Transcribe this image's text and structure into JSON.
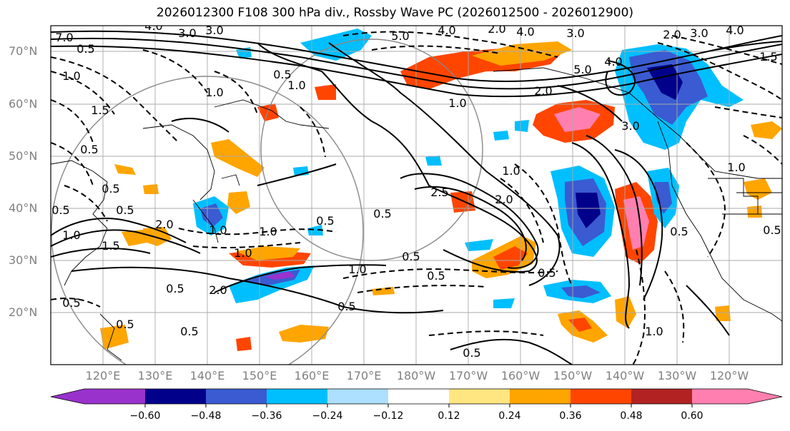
{
  "title": "2026012300 F108 300 hPa div., Rossby Wave PC (2026012500 - 2026012900)",
  "lat_labels": [
    "70°N",
    "60°N",
    "50°N",
    "40°N",
    "30°N",
    "20°N"
  ],
  "lon_labels": [
    "120°E",
    "130°E",
    "140°E",
    "150°E",
    "160°E",
    "170°E",
    "180°W",
    "170°W",
    "160°W",
    "150°W",
    "140°W",
    "130°W",
    "120°W"
  ],
  "colorbar": {
    "ticks": [
      "−0.60",
      "−0.48",
      "−0.36",
      "−0.24",
      "−0.12",
      "0.12",
      "0.24",
      "0.36",
      "0.48",
      "0.60"
    ],
    "colors": [
      "#9932CC",
      "#00008B",
      "#3A5BD1",
      "#00BFFF",
      "#ADDFFF",
      "#FFFFFF",
      "#FFE680",
      "#FFA500",
      "#FF4500",
      "#B22222",
      "#FF80B0",
      "#FF80B0"
    ]
  },
  "contour_labels": [
    "4.0",
    "3.0",
    "7.0",
    "3.0",
    "5.0",
    "4.0",
    "2.0",
    "4.0",
    "3.0",
    "2.0",
    "3.0",
    "4.0",
    "0.5",
    "1.5",
    "1.0",
    "1.0",
    "1.0",
    "0.5",
    "1.0",
    "0.5",
    "0.5",
    "0.5",
    "0.5",
    "2.0",
    "1.0",
    "0.5",
    "0.5",
    "0.5",
    "0.5",
    "5.0",
    "4.0",
    "2.0",
    "3.0",
    "1.0",
    "0.5",
    "1.0",
    "2.0",
    "2.5",
    "1.0",
    "0.5",
    "0.5",
    "2.0",
    "1.5",
    "1.0",
    "0.5",
    "0.5",
    "1.0",
    "0.5",
    "0.5",
    "0.5",
    "0.5",
    "1.0",
    "1.0",
    "1.5"
  ]
}
